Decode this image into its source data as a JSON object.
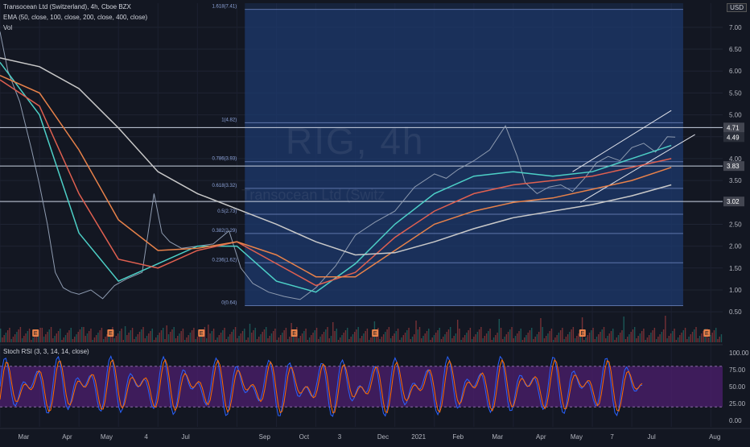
{
  "legend": {
    "title": "Transocean Ltd (Switzerland), 4h, Cboe BZX",
    "ema": "EMA (50, close, 100, close, 200, close, 400, close)",
    "vol": "Vol",
    "stoch": "Stoch RSI (3, 3, 14, 14, close)",
    "currency": "USD"
  },
  "watermark": {
    "symbol": "RIG, 4h",
    "name": "Transocean Ltd (Switz"
  },
  "colors": {
    "background": "#131722",
    "fib_zone": "#1e3a6e",
    "ema50": "#4dd0c7",
    "ema100": "#e06050",
    "ema200": "#e8824a",
    "ema400": "#c9c9c9",
    "candle_up": "#26a69a",
    "candle_down": "#ef5350",
    "stoch_k": "#2962ff",
    "stoch_d": "#ff6d00",
    "stoch_band": "#4a1e6a"
  },
  "chart_data": {
    "type": "line",
    "title": "Transocean Ltd (Switzerland), 4h, Cboe BZX",
    "price_axis": {
      "ticks": [
        0.5,
        1.0,
        1.5,
        2.0,
        2.5,
        3.0,
        3.5,
        4.0,
        4.5,
        5.0,
        5.5,
        6.0,
        6.5,
        7.0
      ],
      "tick_labels": [
        "0.50",
        "1.00",
        "1.50",
        "2.00",
        "2.50",
        "3.00",
        "3.50",
        "4.00",
        "4.50",
        "5.00",
        "5.50",
        "6.00",
        "6.50",
        "7.00"
      ],
      "ylim": [
        0.3,
        7.55
      ]
    },
    "stoch_axis": {
      "ticks": [
        0,
        25,
        50,
        75,
        100
      ],
      "tick_labels": [
        "0.00",
        "25.00",
        "50.00",
        "75.00",
        "100.00"
      ]
    },
    "time_axis": {
      "labels": [
        "Mar",
        "Apr",
        "May",
        "4",
        "Jul",
        "Sep",
        "Oct",
        "3",
        "Dec",
        "2021",
        "Feb",
        "Mar",
        "Apr",
        "May",
        "7",
        "Jul",
        "Aug"
      ],
      "label_positions_index": [
        0.6,
        1.7,
        2.7,
        3.7,
        4.7,
        6.7,
        7.7,
        8.6,
        9.7,
        10.6,
        11.6,
        12.6,
        13.7,
        14.6,
        15.5,
        16.5,
        18.1
      ]
    },
    "price_tags": [
      {
        "value": 4.71,
        "label": "4.71",
        "style": "line"
      },
      {
        "value": 4.49,
        "label": "4.49",
        "style": "current"
      },
      {
        "value": 3.83,
        "label": "3.83",
        "style": "line"
      },
      {
        "value": 3.02,
        "label": "3.02",
        "style": "line"
      }
    ],
    "fib": {
      "x_start": 6.2,
      "x_end": 17.3,
      "levels": [
        {
          "value": 7.41,
          "label": "1.618(7.41)"
        },
        {
          "value": 4.82,
          "label": "1(4.82)"
        },
        {
          "value": 3.93,
          "label": "0.786(3.93)"
        },
        {
          "value": 3.32,
          "label": "0.618(3.32)"
        },
        {
          "value": 2.73,
          "label": "0.5(2.73)"
        },
        {
          "value": 2.29,
          "label": "0.382(2.29)"
        },
        {
          "value": 1.62,
          "label": "0.236(1.62)"
        },
        {
          "value": 0.64,
          "label": "0(0.64)"
        }
      ]
    },
    "channel": {
      "upper": [
        [
          14.5,
          3.7
        ],
        [
          17.0,
          5.1
        ]
      ],
      "lower": [
        [
          14.7,
          3.0
        ],
        [
          17.6,
          4.55
        ]
      ]
    },
    "series": [
      {
        "name": "Price",
        "x": [
          0,
          0.2,
          0.5,
          0.8,
          1.0,
          1.2,
          1.4,
          1.6,
          1.8,
          2.0,
          2.3,
          2.6,
          2.9,
          3.2,
          3.6,
          3.9,
          4.1,
          4.3,
          4.6,
          5.0,
          5.4,
          5.8,
          6.1,
          6.4,
          6.8,
          7.2,
          7.6,
          8.0,
          8.5,
          9.0,
          9.5,
          10.0,
          10.5,
          11.0,
          11.3,
          11.6,
          12.0,
          12.4,
          12.8,
          13.1,
          13.3,
          13.6,
          13.9,
          14.2,
          14.5,
          14.8,
          15.1,
          15.4,
          15.7,
          16.0,
          16.3,
          16.6,
          16.9,
          17.1
        ],
        "values": [
          6.9,
          6.0,
          5.3,
          4.2,
          3.4,
          2.5,
          1.4,
          1.05,
          0.95,
          0.9,
          1.0,
          0.8,
          1.1,
          1.25,
          1.4,
          3.2,
          2.3,
          2.1,
          1.95,
          2.0,
          2.05,
          2.35,
          1.5,
          1.15,
          0.95,
          0.85,
          0.78,
          1.05,
          1.55,
          2.25,
          2.55,
          2.8,
          3.35,
          3.65,
          3.55,
          3.75,
          3.95,
          4.2,
          4.75,
          4.05,
          3.45,
          3.2,
          3.35,
          3.4,
          3.25,
          3.55,
          3.9,
          4.05,
          3.95,
          4.25,
          4.35,
          4.15,
          4.5,
          4.49
        ]
      },
      {
        "name": "EMA 50",
        "x": [
          0,
          1,
          2,
          3,
          4,
          5,
          6,
          7,
          8,
          9,
          10,
          11,
          12,
          13,
          14,
          15,
          16,
          17
        ],
        "values": [
          6.2,
          5.0,
          2.3,
          1.2,
          1.6,
          2.0,
          2.0,
          1.2,
          0.95,
          1.6,
          2.5,
          3.2,
          3.6,
          3.7,
          3.6,
          3.7,
          4.0,
          4.3
        ]
      },
      {
        "name": "EMA 100",
        "x": [
          0,
          1,
          2,
          3,
          4,
          5,
          6,
          7,
          8,
          9,
          10,
          11,
          12,
          13,
          14,
          15,
          16,
          17
        ],
        "values": [
          5.8,
          5.2,
          3.2,
          1.7,
          1.5,
          1.9,
          2.1,
          1.6,
          1.1,
          1.4,
          2.2,
          2.8,
          3.2,
          3.4,
          3.5,
          3.6,
          3.8,
          4.0
        ]
      },
      {
        "name": "EMA 200",
        "x": [
          0,
          1,
          2,
          3,
          4,
          5,
          6,
          7,
          8,
          9,
          10,
          11,
          12,
          13,
          14,
          15,
          16,
          17
        ],
        "values": [
          5.9,
          5.5,
          4.2,
          2.6,
          1.9,
          1.95,
          2.1,
          1.8,
          1.3,
          1.3,
          1.9,
          2.5,
          2.8,
          3.0,
          3.1,
          3.3,
          3.5,
          3.8
        ]
      },
      {
        "name": "EMA 400",
        "x": [
          0,
          1,
          2,
          3,
          4,
          5,
          6,
          7,
          8,
          9,
          10,
          11,
          12,
          13,
          14,
          15,
          16,
          17
        ],
        "values": [
          6.3,
          6.1,
          5.6,
          4.7,
          3.7,
          3.2,
          2.85,
          2.5,
          2.1,
          1.8,
          1.85,
          2.1,
          2.4,
          2.65,
          2.8,
          2.95,
          3.15,
          3.4
        ]
      }
    ]
  }
}
